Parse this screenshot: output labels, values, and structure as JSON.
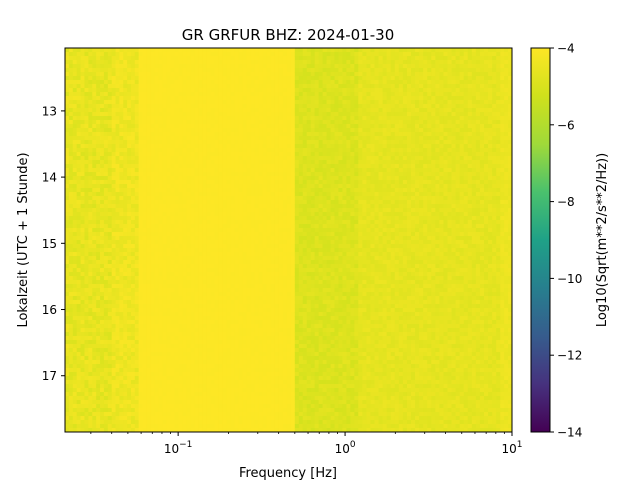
{
  "chart_data": {
    "type": "heatmap",
    "title": "GR GRFUR  BHZ: 2024-01-30",
    "xlabel": "Frequency [Hz]",
    "ylabel": "Lokalzeit (UTC + 1 Stunde)",
    "x_scale": "log",
    "xlim": [
      0.021,
      10
    ],
    "x_ticks": [
      {
        "value": 0.1,
        "base": "10",
        "exp": "−1"
      },
      {
        "value": 1,
        "base": "10",
        "exp": "0"
      },
      {
        "value": 10,
        "base": "10",
        "exp": "1"
      }
    ],
    "ylim": [
      12.05,
      17.85
    ],
    "y_inverted": true,
    "y_ticks": [
      13,
      14,
      15,
      16,
      17
    ],
    "colorbar": {
      "label": "Log10(Sqrt(m**2/s**2/Hz))",
      "colormap": "viridis",
      "range": [
        -14,
        -4
      ],
      "ticks": [
        -4,
        -6,
        -8,
        -10,
        -12,
        -14
      ],
      "tick_labels": [
        "−4",
        "−6",
        "−8",
        "−10",
        "−12",
        "−14"
      ]
    },
    "frequency_bands": [
      {
        "f_min": 0.021,
        "f_max": 0.04,
        "level": -4.6,
        "variability": 0.35
      },
      {
        "f_min": 0.04,
        "f_max": 0.058,
        "level": -4.4,
        "variability": 0.3
      },
      {
        "f_min": 0.058,
        "f_max": 0.5,
        "level": -4.02,
        "variability": 0.04
      },
      {
        "f_min": 0.5,
        "f_max": 1.2,
        "level": -4.9,
        "variability": 0.25
      },
      {
        "f_min": 1.2,
        "f_max": 8.5,
        "level": -4.65,
        "variability": 0.2
      },
      {
        "f_min": 8.5,
        "f_max": 10,
        "level": -4.45,
        "variability": 0.15
      }
    ]
  }
}
